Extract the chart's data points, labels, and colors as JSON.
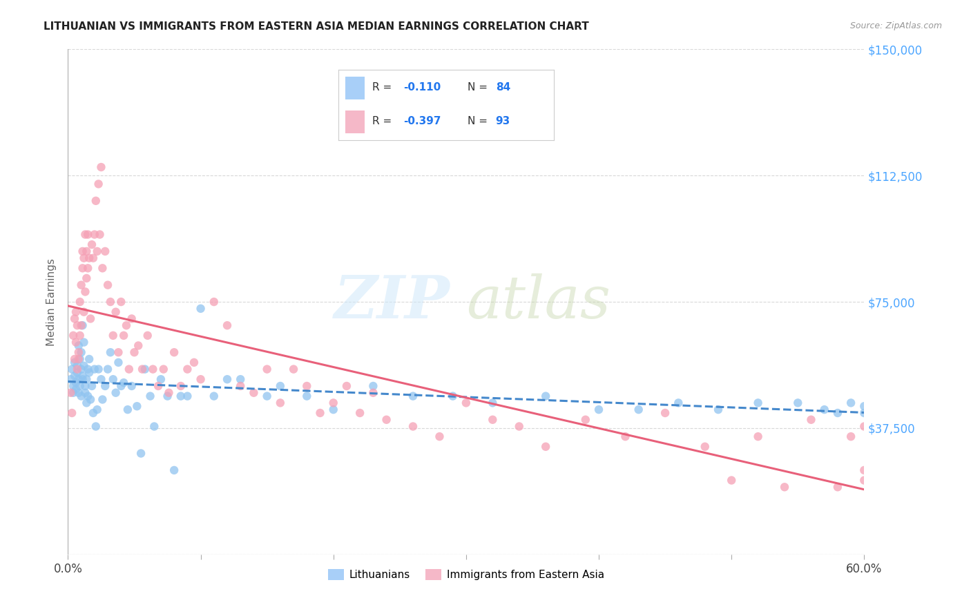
{
  "title": "LITHUANIAN VS IMMIGRANTS FROM EASTERN ASIA MEDIAN EARNINGS CORRELATION CHART",
  "source": "Source: ZipAtlas.com",
  "ylabel": "Median Earnings",
  "xlim": [
    0.0,
    0.6
  ],
  "ylim": [
    0,
    150000
  ],
  "yticks": [
    0,
    37500,
    75000,
    112500,
    150000
  ],
  "ytick_labels": [
    "",
    "$37,500",
    "$75,000",
    "$112,500",
    "$150,000"
  ],
  "xticks": [
    0.0,
    0.1,
    0.2,
    0.3,
    0.4,
    0.5,
    0.6
  ],
  "xtick_labels": [
    "0.0%",
    "",
    "",
    "",
    "",
    "",
    "60.0%"
  ],
  "background_color": "#ffffff",
  "grid_color": "#d8d8d8",
  "watermark_zip": "ZIP",
  "watermark_atlas": "atlas",
  "series": [
    {
      "name": "Lithuanians",
      "R": -0.11,
      "N": 84,
      "color": "#90c4f0",
      "line_color": "#4488cc",
      "linestyle": "--",
      "x": [
        0.002,
        0.003,
        0.004,
        0.004,
        0.005,
        0.005,
        0.006,
        0.006,
        0.007,
        0.007,
        0.008,
        0.008,
        0.008,
        0.009,
        0.009,
        0.01,
        0.01,
        0.01,
        0.011,
        0.011,
        0.011,
        0.012,
        0.012,
        0.013,
        0.013,
        0.014,
        0.014,
        0.015,
        0.015,
        0.016,
        0.016,
        0.017,
        0.018,
        0.019,
        0.02,
        0.021,
        0.022,
        0.023,
        0.025,
        0.026,
        0.028,
        0.03,
        0.032,
        0.034,
        0.036,
        0.038,
        0.04,
        0.042,
        0.045,
        0.048,
        0.052,
        0.055,
        0.058,
        0.062,
        0.065,
        0.07,
        0.075,
        0.08,
        0.085,
        0.09,
        0.1,
        0.11,
        0.12,
        0.13,
        0.15,
        0.16,
        0.18,
        0.2,
        0.23,
        0.26,
        0.29,
        0.32,
        0.36,
        0.4,
        0.43,
        0.46,
        0.49,
        0.52,
        0.55,
        0.57,
        0.58,
        0.59,
        0.6,
        0.6
      ],
      "y": [
        52000,
        55000,
        50000,
        48000,
        53000,
        57000,
        51000,
        49000,
        54000,
        56000,
        52000,
        48000,
        62000,
        58000,
        50000,
        47000,
        60000,
        55000,
        52000,
        68000,
        53000,
        63000,
        56000,
        48000,
        50000,
        45000,
        52000,
        47000,
        55000,
        58000,
        54000,
        46000,
        50000,
        42000,
        55000,
        38000,
        43000,
        55000,
        52000,
        46000,
        50000,
        55000,
        60000,
        52000,
        48000,
        57000,
        50000,
        51000,
        43000,
        50000,
        44000,
        30000,
        55000,
        47000,
        38000,
        52000,
        47000,
        25000,
        47000,
        47000,
        73000,
        47000,
        52000,
        52000,
        47000,
        50000,
        47000,
        43000,
        50000,
        47000,
        47000,
        45000,
        47000,
        43000,
        43000,
        45000,
        43000,
        45000,
        45000,
        43000,
        42000,
        45000,
        44000,
        42000
      ]
    },
    {
      "name": "Immigrants from Eastern Asia",
      "R": -0.397,
      "N": 93,
      "color": "#f5a0b5",
      "line_color": "#e8607a",
      "linestyle": "-",
      "x": [
        0.002,
        0.003,
        0.004,
        0.005,
        0.005,
        0.006,
        0.006,
        0.007,
        0.007,
        0.008,
        0.008,
        0.009,
        0.009,
        0.01,
        0.01,
        0.011,
        0.011,
        0.012,
        0.012,
        0.013,
        0.013,
        0.014,
        0.014,
        0.015,
        0.015,
        0.016,
        0.017,
        0.018,
        0.019,
        0.02,
        0.021,
        0.022,
        0.023,
        0.024,
        0.025,
        0.026,
        0.028,
        0.03,
        0.032,
        0.034,
        0.036,
        0.038,
        0.04,
        0.042,
        0.044,
        0.046,
        0.048,
        0.05,
        0.053,
        0.056,
        0.06,
        0.064,
        0.068,
        0.072,
        0.076,
        0.08,
        0.085,
        0.09,
        0.095,
        0.1,
        0.11,
        0.12,
        0.13,
        0.14,
        0.15,
        0.16,
        0.17,
        0.18,
        0.19,
        0.2,
        0.21,
        0.22,
        0.23,
        0.24,
        0.26,
        0.28,
        0.3,
        0.32,
        0.34,
        0.36,
        0.39,
        0.42,
        0.45,
        0.48,
        0.5,
        0.52,
        0.54,
        0.56,
        0.58,
        0.59,
        0.6,
        0.6,
        0.6
      ],
      "y": [
        48000,
        42000,
        65000,
        58000,
        70000,
        63000,
        72000,
        55000,
        68000,
        60000,
        58000,
        65000,
        75000,
        80000,
        68000,
        90000,
        85000,
        88000,
        72000,
        95000,
        78000,
        82000,
        90000,
        95000,
        85000,
        88000,
        70000,
        92000,
        88000,
        95000,
        105000,
        90000,
        110000,
        95000,
        115000,
        85000,
        90000,
        80000,
        75000,
        65000,
        72000,
        60000,
        75000,
        65000,
        68000,
        55000,
        70000,
        60000,
        62000,
        55000,
        65000,
        55000,
        50000,
        55000,
        48000,
        60000,
        50000,
        55000,
        57000,
        52000,
        75000,
        68000,
        50000,
        48000,
        55000,
        45000,
        55000,
        50000,
        42000,
        45000,
        50000,
        42000,
        48000,
        40000,
        38000,
        35000,
        45000,
        40000,
        38000,
        32000,
        40000,
        35000,
        42000,
        32000,
        22000,
        35000,
        20000,
        40000,
        20000,
        35000,
        25000,
        38000,
        22000
      ]
    }
  ]
}
